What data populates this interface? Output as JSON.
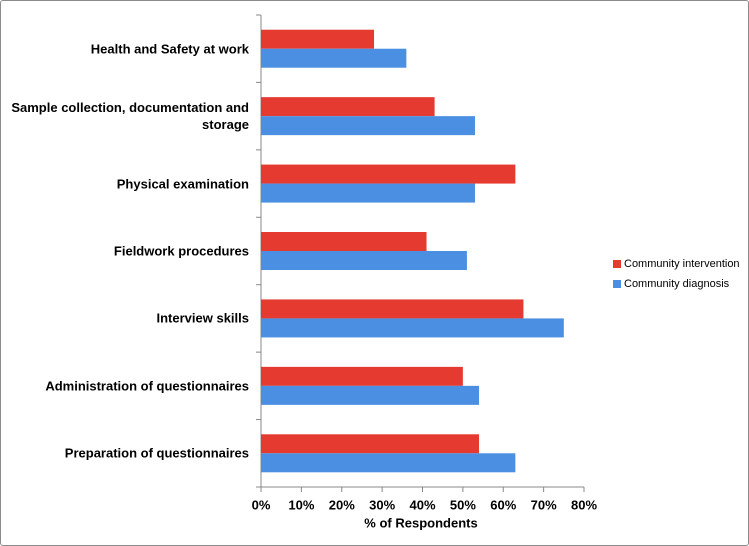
{
  "chart_data": {
    "type": "hbar",
    "categories": [
      "Health and Safety at work",
      "Sample collection, documentation and storage",
      "Physical examination",
      "Fieldwork procedures",
      "Interview skills",
      "Administration of questionnaires",
      "Preparation of questionnaires"
    ],
    "series": [
      {
        "name": "Community intervention",
        "color": "#e53a30",
        "values": [
          28,
          43,
          63,
          41,
          65,
          50,
          54
        ]
      },
      {
        "name": "Community diagnosis",
        "color": "#4a8fe2",
        "values": [
          36,
          53,
          53,
          51,
          75,
          54,
          63
        ]
      }
    ],
    "xlabel": "% of Respondents",
    "xlim": [
      0,
      80
    ],
    "xticks": [
      {
        "value": 0,
        "label": "0%"
      },
      {
        "value": 10,
        "label": "10%"
      },
      {
        "value": 20,
        "label": "20%"
      },
      {
        "value": 30,
        "label": "30%"
      },
      {
        "value": 40,
        "label": "40%"
      },
      {
        "value": 50,
        "label": "50%"
      },
      {
        "value": 60,
        "label": "60%"
      },
      {
        "value": 70,
        "label": "70%"
      },
      {
        "value": 80,
        "label": "80%"
      }
    ],
    "legend": "right"
  }
}
